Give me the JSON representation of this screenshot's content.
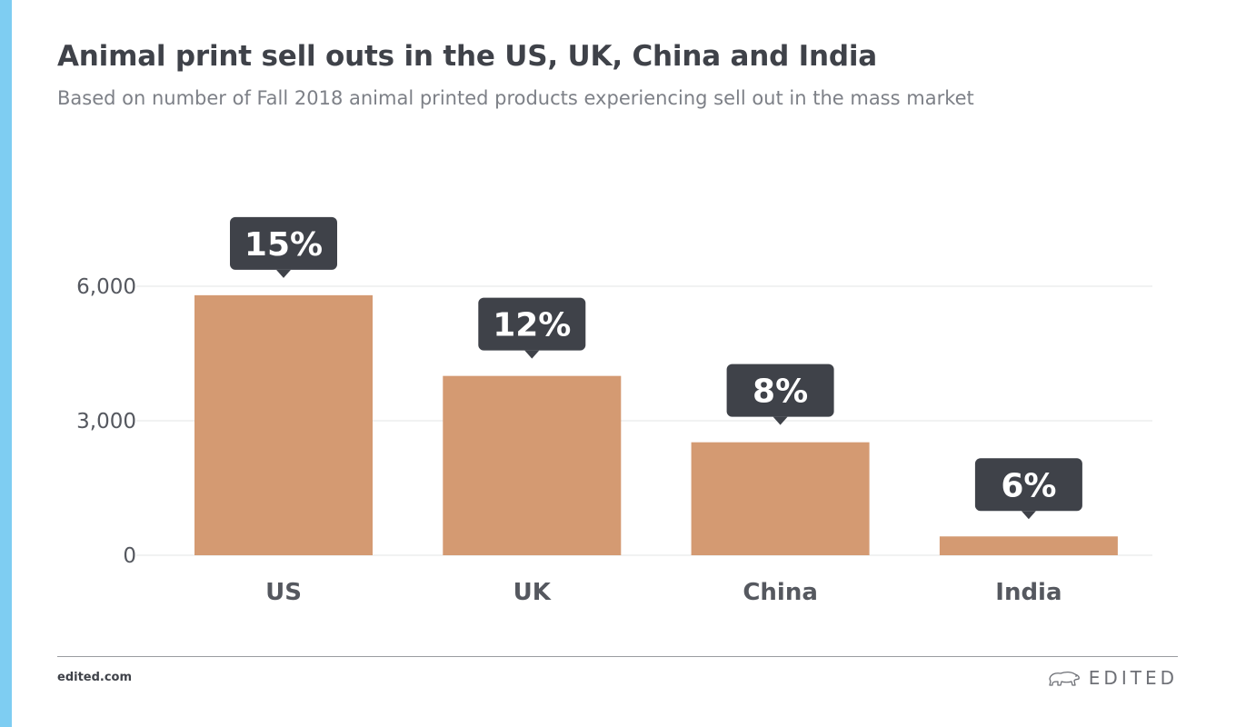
{
  "colors": {
    "accent_bar": "#7ecdf2",
    "bar": "#d49a72",
    "label_bg": "#3f4249",
    "label_text": "#ffffff",
    "grid": "#e3e4e6",
    "axis_text": "#55585f"
  },
  "header": {
    "title": "Animal print sell outs in the US, UK, China and India",
    "subtitle": "Based on number of Fall 2018 animal printed products experiencing sell out in the mass market"
  },
  "chart_data": {
    "type": "bar",
    "categories": [
      "US",
      "UK",
      "China",
      "India"
    ],
    "values": [
      5800,
      4000,
      2520,
      420
    ],
    "data_labels": [
      "15%",
      "12%",
      "8%",
      "6%"
    ],
    "title": "Animal print sell outs in the US, UK, China and India",
    "subtitle": "Based on number of Fall 2018 animal printed products experiencing sell out in the mass market",
    "xlabel": "",
    "ylabel": "",
    "ylim": [
      0,
      6000
    ],
    "yticks": [
      0,
      3000,
      6000
    ],
    "ytick_labels": [
      "0",
      "3,000",
      "6,000"
    ],
    "grid": true,
    "legend": "none"
  },
  "footer": {
    "url": "edited.com",
    "brand": "EDITED",
    "brand_icon": "polar-bear-icon"
  }
}
